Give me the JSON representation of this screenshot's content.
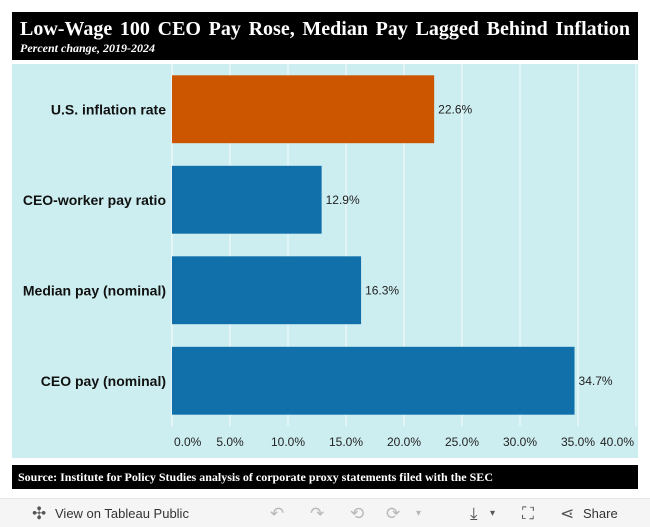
{
  "header": {
    "title": "Low-Wage 100 CEO Pay Rose, Median Pay Lagged Behind Inflation",
    "subtitle": "Percent change, 2019-2024"
  },
  "source": "Source: Institute for Policy Studies analysis of corporate proxy statements filed with the SEC",
  "colors": {
    "inflation": "#cc5500",
    "pay": "#1170aa",
    "background": "#cdeef0"
  },
  "chart_data": {
    "type": "bar",
    "orientation": "horizontal",
    "title": "Low-Wage 100 CEO Pay Rose, Median Pay Lagged Behind Inflation",
    "subtitle": "Percent change, 2019-2024",
    "categories": [
      "U.S. inflation rate",
      "CEO-worker pay ratio",
      "Median pay (nominal)",
      "CEO pay (nominal)"
    ],
    "values": [
      22.6,
      12.9,
      16.3,
      34.7
    ],
    "value_labels": [
      "22.6%",
      "12.9%",
      "16.3%",
      "34.7%"
    ],
    "bar_colors": [
      "#cc5500",
      "#1170aa",
      "#1170aa",
      "#1170aa"
    ],
    "xlim": [
      0,
      40
    ],
    "xticks": [
      0,
      5,
      10,
      15,
      20,
      25,
      30,
      35,
      40
    ],
    "xtick_labels": [
      "0.0%",
      "5.0%",
      "10.0%",
      "15.0%",
      "20.0%",
      "25.0%",
      "30.0%",
      "35.0%",
      "40.0%"
    ],
    "xlabel": "",
    "ylabel": "",
    "grid": true
  },
  "toolbar": {
    "view_label": "View on Tableau Public",
    "share_label": "Share",
    "icons": [
      "tableau-icon",
      "undo-icon",
      "redo-icon",
      "revert-icon",
      "refresh-icon",
      "download-icon",
      "fullscreen-icon",
      "share-icon"
    ]
  }
}
